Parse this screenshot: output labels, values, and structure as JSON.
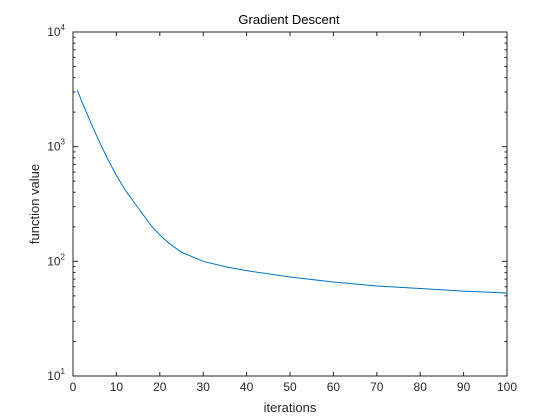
{
  "chart_data": {
    "type": "line",
    "title": "Gradient Descent",
    "xlabel": "iterations",
    "ylabel": "function value",
    "xlim": [
      0,
      100
    ],
    "ylim": [
      10,
      10000
    ],
    "yscale": "log",
    "grid": false,
    "line_color": "#0072BD",
    "xticks": [
      0,
      10,
      20,
      30,
      40,
      50,
      60,
      70,
      80,
      90,
      100
    ],
    "yticks": [
      {
        "value": 10,
        "base": "10",
        "exp": "1"
      },
      {
        "value": 100,
        "base": "10",
        "exp": "2"
      },
      {
        "value": 1000,
        "base": "10",
        "exp": "3"
      },
      {
        "value": 10000,
        "base": "10",
        "exp": "4"
      }
    ],
    "series": [
      {
        "x": [
          1,
          2,
          4,
          6,
          8,
          10,
          12,
          14,
          16,
          18,
          20,
          22,
          25,
          30,
          35,
          40,
          50,
          60,
          70,
          80,
          90,
          100
        ],
        "y": [
          3100,
          2500,
          1650,
          1120,
          780,
          560,
          420,
          330,
          260,
          205,
          170,
          145,
          120,
          100,
          90,
          83,
          73,
          66,
          61,
          58,
          55,
          53
        ]
      }
    ]
  }
}
